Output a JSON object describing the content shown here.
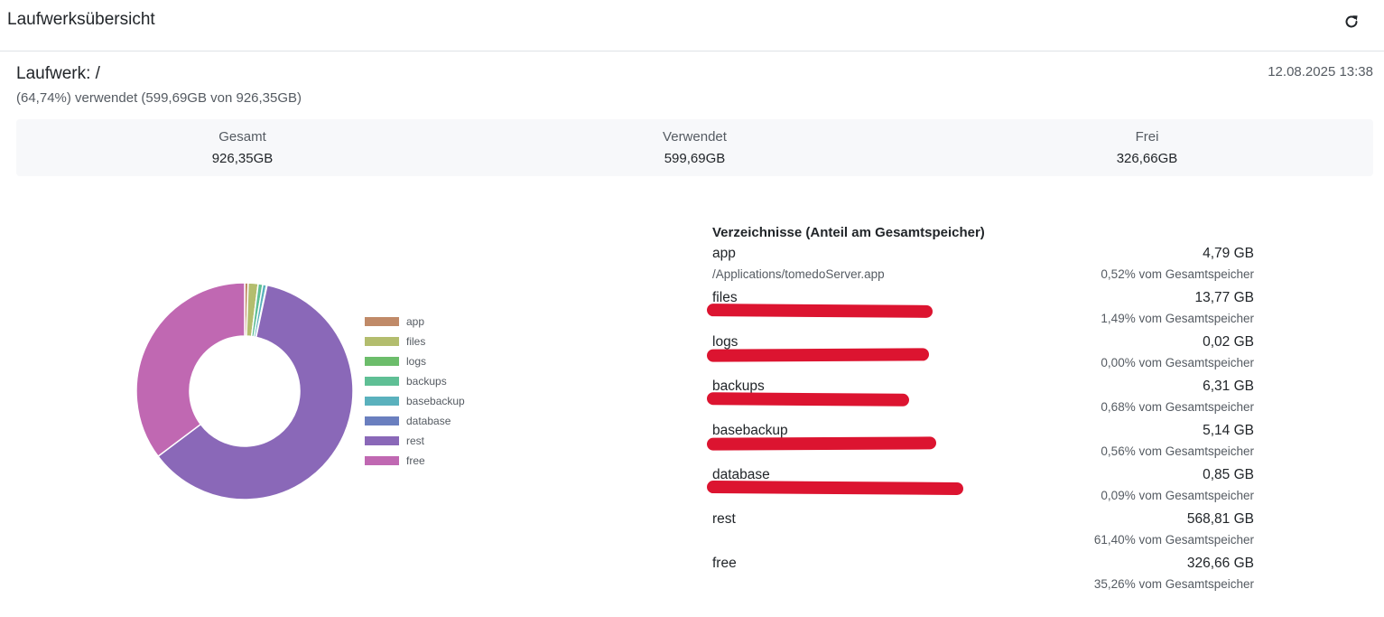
{
  "header": {
    "title": "Laufwerksübersicht",
    "refresh_icon": "refresh-icon"
  },
  "drive": {
    "title": "Laufwerk: /",
    "usage": "(64,74%) verwendet (599,69GB von 926,35GB)",
    "timestamp": "12.08.2025 13:38"
  },
  "stats": [
    {
      "label": "Gesamt",
      "value": "926,35GB"
    },
    {
      "label": "Verwendet",
      "value": "599,69GB"
    },
    {
      "label": "Frei",
      "value": "326,66GB"
    }
  ],
  "chart_data": {
    "type": "pie",
    "categories": [
      "app",
      "files",
      "logs",
      "backups",
      "basebackup",
      "database",
      "rest",
      "free"
    ],
    "values": [
      4.79,
      13.77,
      0.02,
      6.31,
      5.14,
      0.85,
      568.81,
      326.66
    ],
    "colors": [
      "#c08a68",
      "#b3bd6e",
      "#6cbd6b",
      "#5fbf95",
      "#5ab1bd",
      "#6a7fbf",
      "#8a68b8",
      "#c068b2"
    ],
    "legend": "right"
  },
  "directories": {
    "title": "Verzeichnisse (Anteil am Gesamtspeicher)",
    "items": [
      {
        "name": "app",
        "size": "4,79 GB",
        "path": "/Applications/tomedoServer.app",
        "pct": "0,52% vom Gesamtspeicher",
        "redacted": false
      },
      {
        "name": "files",
        "size": "13,77 GB",
        "path": "",
        "pct": "1,49% vom Gesamtspeicher",
        "redacted": true
      },
      {
        "name": "logs",
        "size": "0,02 GB",
        "path": "",
        "pct": "0,00% vom Gesamtspeicher",
        "redacted": true
      },
      {
        "name": "backups",
        "size": "6,31 GB",
        "path": "",
        "pct": "0,68% vom Gesamtspeicher",
        "redacted": true
      },
      {
        "name": "basebackup",
        "size": "5,14 GB",
        "path": "",
        "pct": "0,56% vom Gesamtspeicher",
        "redacted": true
      },
      {
        "name": "database",
        "size": "0,85 GB",
        "path": "",
        "pct": "0,09% vom Gesamtspeicher",
        "redacted": true
      },
      {
        "name": "rest",
        "size": "568,81 GB",
        "path": "",
        "pct": "61,40% vom Gesamtspeicher",
        "redacted": false
      },
      {
        "name": "free",
        "size": "326,66 GB",
        "path": "",
        "pct": "35,26% vom Gesamtspeicher",
        "redacted": false
      }
    ]
  }
}
